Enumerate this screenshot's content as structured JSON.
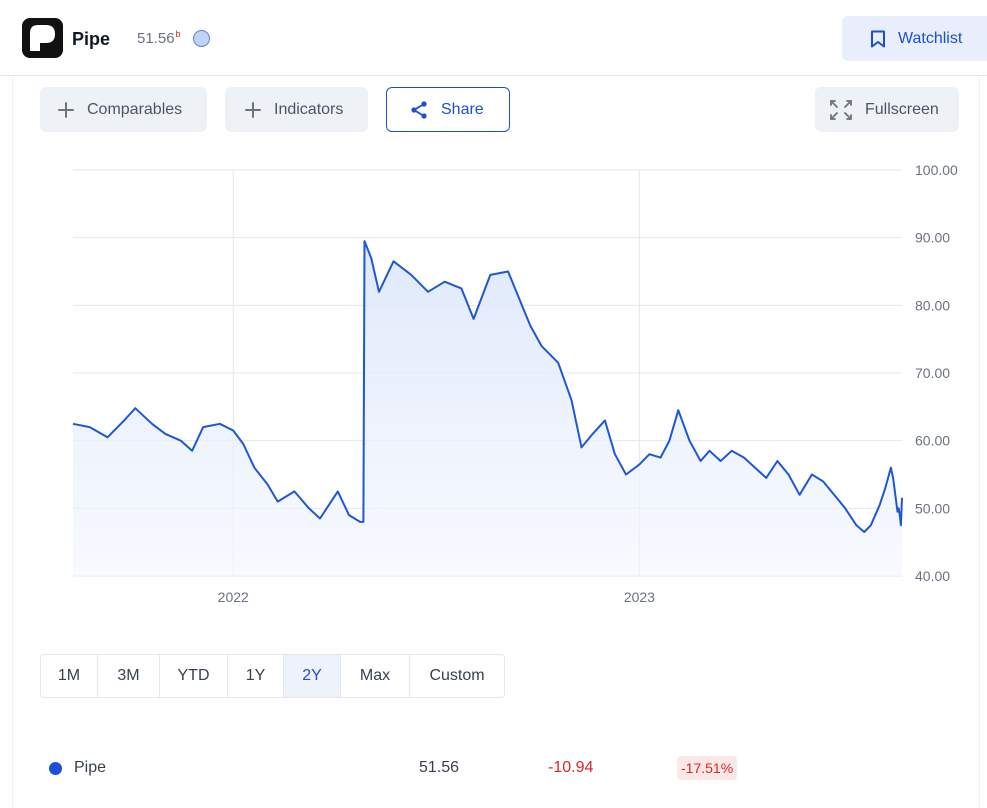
{
  "header": {
    "ticker": "Pipe",
    "price": "51.56",
    "price_superscript": "b",
    "status_icon": "circle-status-icon",
    "watchlist_label": "Watchlist"
  },
  "toolbar": {
    "comparables_label": "Comparables",
    "indicators_label": "Indicators",
    "share_label": "Share",
    "fullscreen_label": "Fullscreen"
  },
  "chart_data": {
    "type": "area",
    "title": "",
    "xlabel": "",
    "ylabel": "",
    "ylim": [
      40,
      100
    ],
    "yticks": [
      "100.00",
      "90.00",
      "80.00",
      "70.00",
      "60.00",
      "50.00",
      "40.00"
    ],
    "xtick_labels": [
      "2022",
      "2023"
    ],
    "xtick_dates": [
      "2022-01-01",
      "2023-01-01"
    ],
    "xlim": [
      "2021-08-10",
      "2023-08-25"
    ],
    "grid": true,
    "line_color": "#1d57d8",
    "series": [
      {
        "name": "Pipe",
        "points": [
          [
            "2021-08-10",
            62.5
          ],
          [
            "2021-08-25",
            62.0
          ],
          [
            "2021-09-10",
            60.5
          ],
          [
            "2021-09-25",
            63.0
          ],
          [
            "2021-10-05",
            64.8
          ],
          [
            "2021-10-20",
            62.5
          ],
          [
            "2021-11-01",
            61.0
          ],
          [
            "2021-11-15",
            60.0
          ],
          [
            "2021-11-25",
            58.5
          ],
          [
            "2021-12-05",
            62.0
          ],
          [
            "2021-12-20",
            62.5
          ],
          [
            "2022-01-01",
            61.5
          ],
          [
            "2022-01-10",
            59.5
          ],
          [
            "2022-01-20",
            56.0
          ],
          [
            "2022-02-01",
            53.5
          ],
          [
            "2022-02-10",
            51.0
          ],
          [
            "2022-02-25",
            52.5
          ],
          [
            "2022-03-10",
            50.0
          ],
          [
            "2022-03-20",
            48.5
          ],
          [
            "2022-04-05",
            52.5
          ],
          [
            "2022-04-15",
            49.0
          ],
          [
            "2022-04-25",
            48.0
          ],
          [
            "2022-04-28",
            48.0
          ],
          [
            "2022-04-29",
            89.5
          ],
          [
            "2022-05-05",
            87.0
          ],
          [
            "2022-05-12",
            82.0
          ],
          [
            "2022-05-25",
            86.5
          ],
          [
            "2022-06-10",
            84.5
          ],
          [
            "2022-06-25",
            82.0
          ],
          [
            "2022-07-10",
            83.5
          ],
          [
            "2022-07-25",
            82.5
          ],
          [
            "2022-08-05",
            78.0
          ],
          [
            "2022-08-20",
            84.5
          ],
          [
            "2022-09-05",
            85.0
          ],
          [
            "2022-09-15",
            81.0
          ],
          [
            "2022-09-25",
            77.0
          ],
          [
            "2022-10-05",
            74.0
          ],
          [
            "2022-10-20",
            71.5
          ],
          [
            "2022-11-01",
            66.0
          ],
          [
            "2022-11-10",
            59.0
          ],
          [
            "2022-11-20",
            61.0
          ],
          [
            "2022-12-01",
            63.0
          ],
          [
            "2022-12-10",
            58.0
          ],
          [
            "2022-12-20",
            55.0
          ],
          [
            "2023-01-01",
            56.5
          ],
          [
            "2023-01-10",
            58.0
          ],
          [
            "2023-01-20",
            57.5
          ],
          [
            "2023-01-28",
            60.0
          ],
          [
            "2023-02-05",
            64.5
          ],
          [
            "2023-02-15",
            60.0
          ],
          [
            "2023-02-25",
            57.0
          ],
          [
            "2023-03-05",
            58.5
          ],
          [
            "2023-03-15",
            57.0
          ],
          [
            "2023-03-25",
            58.5
          ],
          [
            "2023-04-05",
            57.5
          ],
          [
            "2023-04-15",
            56.0
          ],
          [
            "2023-04-25",
            54.5
          ],
          [
            "2023-05-05",
            57.0
          ],
          [
            "2023-05-15",
            55.0
          ],
          [
            "2023-05-25",
            52.0
          ],
          [
            "2023-06-05",
            55.0
          ],
          [
            "2023-06-15",
            54.0
          ],
          [
            "2023-06-25",
            52.0
          ],
          [
            "2023-07-05",
            50.0
          ],
          [
            "2023-07-15",
            47.5
          ],
          [
            "2023-07-22",
            46.5
          ],
          [
            "2023-07-28",
            47.5
          ],
          [
            "2023-08-05",
            50.5
          ],
          [
            "2023-08-10",
            53.0
          ],
          [
            "2023-08-15",
            56.0
          ],
          [
            "2023-08-17",
            54.5
          ],
          [
            "2023-08-19",
            52.0
          ],
          [
            "2023-08-21",
            49.5
          ],
          [
            "2023-08-22",
            50.0
          ],
          [
            "2023-08-23",
            49.0
          ],
          [
            "2023-08-24",
            47.5
          ],
          [
            "2023-08-25",
            51.56
          ]
        ]
      }
    ]
  },
  "ranges": {
    "items": [
      "1M",
      "3M",
      "YTD",
      "1Y",
      "2Y",
      "Max",
      "Custom"
    ],
    "active": "2Y"
  },
  "legend": {
    "name": "Pipe",
    "price": "51.56",
    "change": "-10.94",
    "change_pct": "-17.51%"
  },
  "colors": {
    "accent": "#1d4ed8",
    "negative": "#dc2626"
  }
}
